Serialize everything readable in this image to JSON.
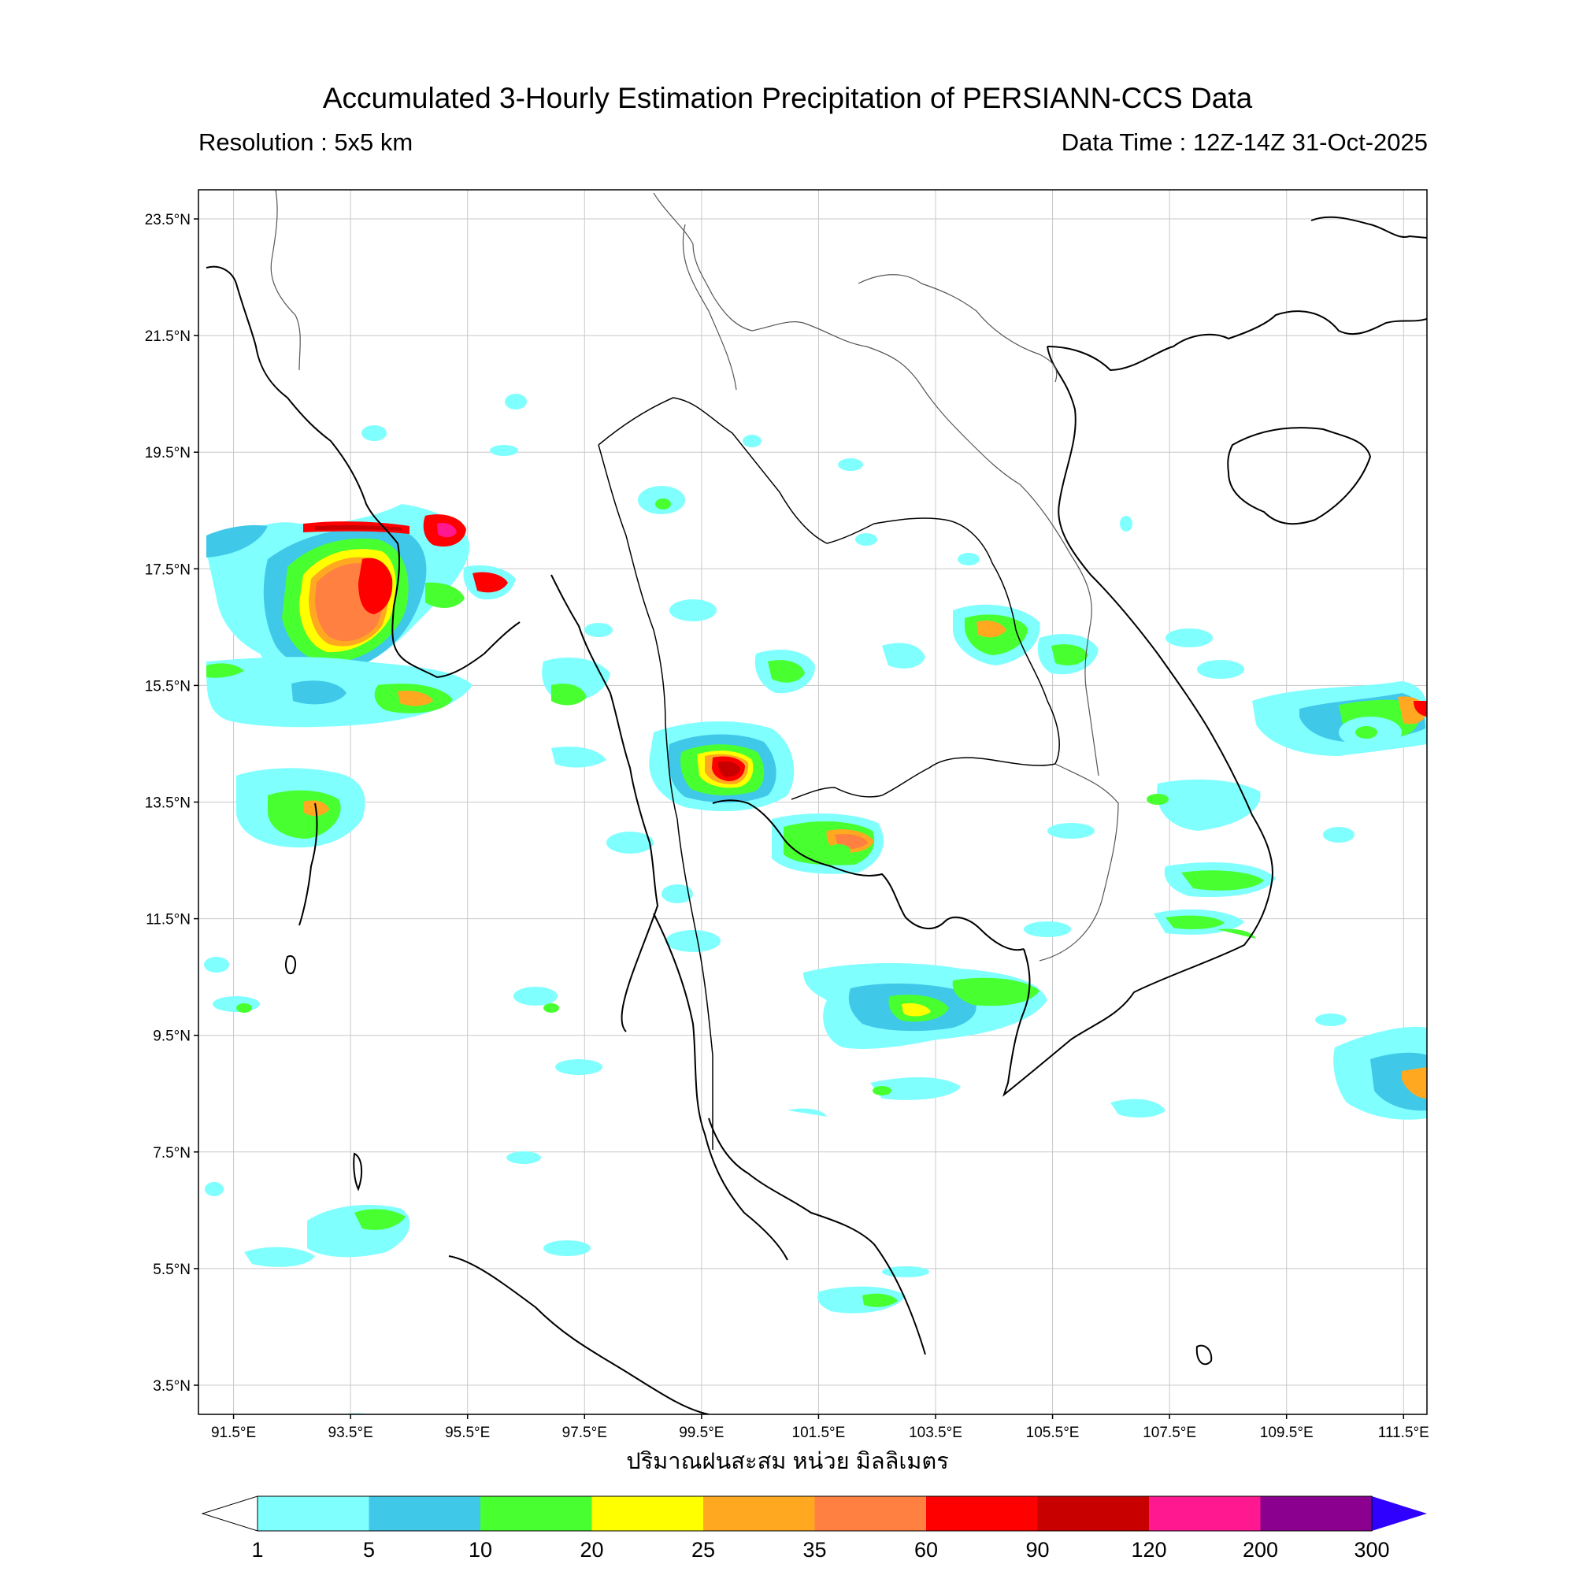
{
  "header": {
    "title": "Accumulated 3-Hourly Estimation Precipitation of PERSIANN-CCS Data",
    "resolution": "Resolution : 5x5 km",
    "data_time": "Data Time : 12Z-14Z 31-Oct-2025"
  },
  "map": {
    "lon_range": [
      90.9,
      111.9
    ],
    "lat_range": [
      3.0,
      24.0
    ],
    "lat_ticks": [
      {
        "value": 23.5,
        "label": "23.5°N"
      },
      {
        "value": 21.5,
        "label": "21.5°N"
      },
      {
        "value": 19.5,
        "label": "19.5°N"
      },
      {
        "value": 17.5,
        "label": "17.5°N"
      },
      {
        "value": 15.5,
        "label": "15.5°N"
      },
      {
        "value": 13.5,
        "label": "13.5°N"
      },
      {
        "value": 11.5,
        "label": "11.5°N"
      },
      {
        "value": 9.5,
        "label": "9.5°N"
      },
      {
        "value": 7.5,
        "label": "7.5°N"
      },
      {
        "value": 5.5,
        "label": "5.5°N"
      },
      {
        "value": 3.5,
        "label": "3.5°N"
      }
    ],
    "lon_ticks": [
      {
        "value": 91.5,
        "label": "91.5°E"
      },
      {
        "value": 93.5,
        "label": "93.5°E"
      },
      {
        "value": 95.5,
        "label": "95.5°E"
      },
      {
        "value": 97.5,
        "label": "97.5°E"
      },
      {
        "value": 99.5,
        "label": "99.5°E"
      },
      {
        "value": 101.5,
        "label": "101.5°E"
      },
      {
        "value": 103.5,
        "label": "103.5°E"
      },
      {
        "value": 105.5,
        "label": "105.5°E"
      },
      {
        "value": 107.5,
        "label": "107.5°E"
      },
      {
        "value": 109.5,
        "label": "109.5°E"
      },
      {
        "value": 111.5,
        "label": "111.5°E"
      }
    ],
    "gridlines": true,
    "xlabel": "ปริมาณฝนสะสม หน่วย มิลลิเมตร"
  },
  "colorbar": {
    "levels": [
      "1",
      "5",
      "10",
      "20",
      "25",
      "35",
      "60",
      "90",
      "120",
      "200",
      "300"
    ],
    "colors": [
      "#80ffff",
      "#40c8e8",
      "#48ff30",
      "#ffff00",
      "#ffa820",
      "#ff8040",
      "#ff0000",
      "#c80000",
      "#ff1890",
      "#8c0090"
    ],
    "under_color": "#ffffff",
    "over_color": "#3000ff"
  }
}
